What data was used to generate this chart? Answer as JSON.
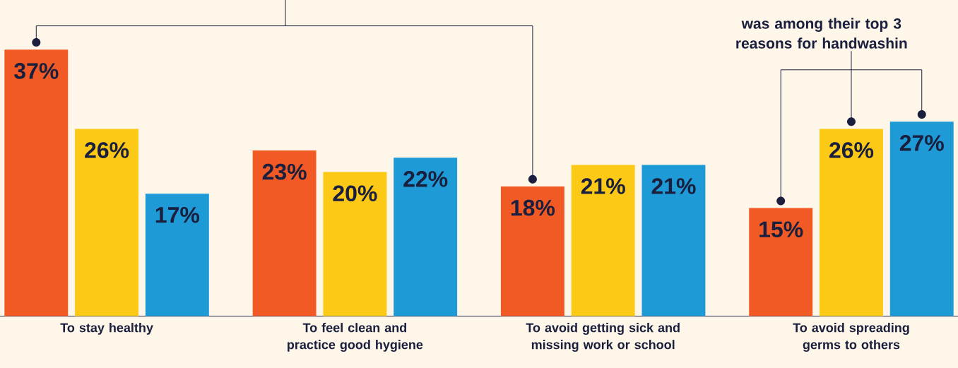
{
  "chart_data": {
    "type": "bar",
    "categories": [
      "To stay healthy",
      "To feel clean and practice good hygiene",
      "To avoid getting sick and missing work or school",
      "To avoid spreading germs to others"
    ],
    "series": [
      {
        "color": "#f15a24",
        "values": [
          37,
          23,
          18,
          15
        ],
        "value_labels": [
          "37%",
          "23%",
          "18%",
          "15%"
        ]
      },
      {
        "color": "#fcc917",
        "values": [
          26,
          20,
          21,
          26
        ],
        "value_labels": [
          "26%",
          "20%",
          "21%",
          "26%"
        ]
      },
      {
        "color": "#1e9ad6",
        "values": [
          17,
          22,
          21,
          27
        ],
        "value_labels": [
          "17%",
          "22%",
          "21%",
          "27%"
        ]
      }
    ],
    "annotations": [
      "was among their top 3 reasons for handwashin"
    ]
  }
}
